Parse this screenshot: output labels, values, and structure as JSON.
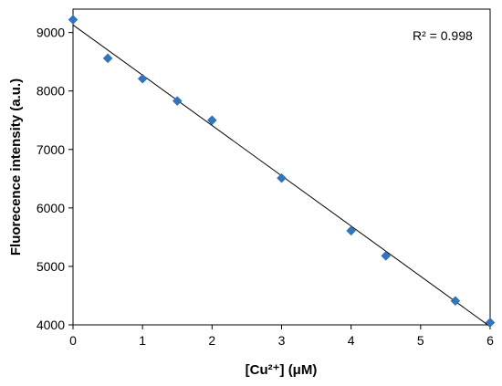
{
  "chart_data": {
    "type": "scatter",
    "title": "",
    "xlabel": "[Cu²⁺] (μM)",
    "ylabel": "Fluorecence intensity (a.u.)",
    "xlim": [
      0,
      6
    ],
    "ylim": [
      4000,
      9400
    ],
    "x_ticks": [
      0,
      1,
      2,
      3,
      4,
      5,
      6
    ],
    "y_ticks": [
      4000,
      5000,
      6000,
      7000,
      8000,
      9000
    ],
    "x_tick_labels": [
      "0",
      "1",
      "2",
      "3",
      "4",
      "5",
      "6"
    ],
    "y_tick_labels": [
      "4000",
      "5000",
      "6000",
      "7000",
      "8000",
      "9000"
    ],
    "grid": false,
    "legend": "none",
    "series": [
      {
        "color": "#2E75C6",
        "marker": "diamond",
        "points": [
          {
            "x": 0,
            "y": 9220
          },
          {
            "x": 0.5,
            "y": 8560
          },
          {
            "x": 1,
            "y": 8210
          },
          {
            "x": 1.5,
            "y": 7830
          },
          {
            "x": 2,
            "y": 7500
          },
          {
            "x": 3,
            "y": 6510
          },
          {
            "x": 4,
            "y": 5610
          },
          {
            "x": 4.5,
            "y": 5180
          },
          {
            "x": 5.5,
            "y": 4410
          },
          {
            "x": 6,
            "y": 4040
          }
        ]
      }
    ],
    "trendline": {
      "type": "linear",
      "color": "#000000",
      "x": [
        0,
        6
      ],
      "y": [
        9130,
        3970
      ]
    },
    "annotations": [
      {
        "text": "R² = 0.998"
      }
    ]
  }
}
